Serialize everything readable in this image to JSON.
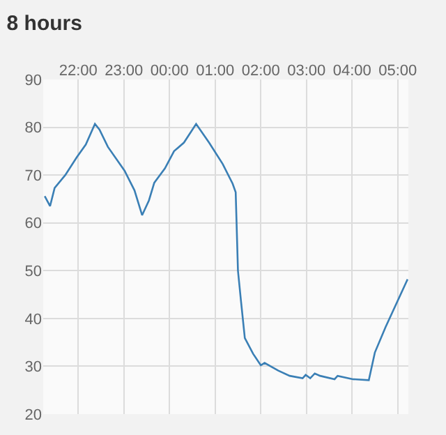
{
  "chart_data": {
    "type": "line",
    "title": "8 hours",
    "x": [
      "--01-01T21:16",
      "--01-01T21:23",
      "--01-01T21:29",
      "--01-01T21:43",
      "--01-01T21:58",
      "--01-01T22:10",
      "--01-01T22:22",
      "--01-01T22:28",
      "--01-01T22:39",
      "--01-01T23:01",
      "--01-01T23:14",
      "--01-01T23:24",
      "--01-01T23:33",
      "--01-01T23:40",
      "--01-01T23:54",
      "--01-02T00:06",
      "--01-02T00:19",
      "--01-02T00:35",
      "--01-02T00:52",
      "--01-02T01:10",
      "--01-02T01:23",
      "--01-02T01:27",
      "--01-02T01:30",
      "--01-02T01:34",
      "--01-02T01:39",
      "--01-02T01:50",
      "--01-02T02:00",
      "--01-02T02:05",
      "--01-02T02:23",
      "--01-02T02:38",
      "--01-02T02:55",
      "--01-02T02:59",
      "--01-02T03:05",
      "--01-02T03:11",
      "--01-02T03:18",
      "--01-02T03:37",
      "--01-02T03:41",
      "--01-02T04:01",
      "--01-02T04:22",
      "--01-02T04:30",
      "--01-02T04:44",
      "--01-02T05:13"
    ],
    "series": [
      {
        "color": "#3a7fb5",
        "values": [
          65.6,
          63.5,
          67.3,
          70,
          73.7,
          76.4,
          80.7,
          79.5,
          75.9,
          70.9,
          66.8,
          61.6,
          64.7,
          68.4,
          71.4,
          75,
          76.8,
          80.7,
          76.8,
          72.3,
          68.2,
          66.4,
          50.0,
          43.6,
          35.9,
          32.6,
          30.2,
          30.7,
          29.1,
          28.0,
          27.5,
          28.2,
          27.5,
          28.5,
          28.0,
          27.3,
          28.0,
          27.3,
          27.1,
          32.9,
          38.2,
          48.2
        ]
      }
    ],
    "xlim": [
      "--01-01T21:14",
      "--01-02T05:14"
    ],
    "xticks": [
      {
        "value": "--01-01T22:00",
        "label": "22:00"
      },
      {
        "value": "--01-01T23:00",
        "label": "23:00"
      },
      {
        "value": "--01-02T00:00",
        "label": "00:00"
      },
      {
        "value": "--01-02T01:00",
        "label": "01:00"
      },
      {
        "value": "--01-02T02:00",
        "label": "02:00"
      },
      {
        "value": "--01-02T03:00",
        "label": "03:00"
      },
      {
        "value": "--01-02T04:00",
        "label": "04:00"
      },
      {
        "value": "--01-02T05:00",
        "label": "05:00"
      }
    ],
    "ylim": [
      20,
      90
    ],
    "yticks": [
      20,
      30,
      40,
      50,
      60,
      70,
      80,
      90
    ],
    "grid": true,
    "legend": false,
    "marker": "none",
    "line_style": "solid"
  }
}
